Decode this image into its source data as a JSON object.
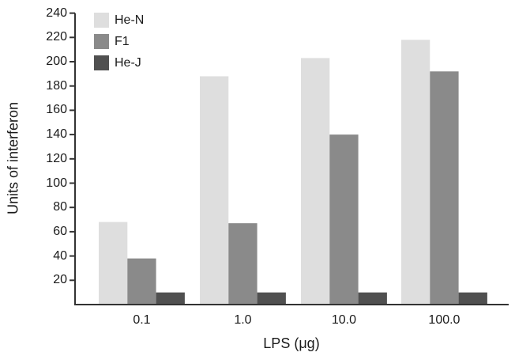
{
  "chart_data": {
    "type": "bar",
    "title": "",
    "xlabel": "LPS (μg)",
    "ylabel": "Units of interferon",
    "categories": [
      "0.1",
      "1.0",
      "10.0",
      "100.0"
    ],
    "series": [
      {
        "name": "He-N",
        "color": "#dedede",
        "values": [
          68,
          188,
          203,
          218
        ]
      },
      {
        "name": "F1",
        "color": "#8a8a8a",
        "values": [
          38,
          67,
          140,
          192
        ]
      },
      {
        "name": "He-J",
        "color": "#505050",
        "values": [
          10,
          10,
          10,
          10
        ]
      }
    ],
    "ylim": [
      0,
      240
    ],
    "yticks": [
      20,
      40,
      60,
      80,
      100,
      120,
      140,
      160,
      180,
      200,
      220,
      240
    ],
    "grid": false,
    "legend_position": "upper-left"
  },
  "labels": {
    "xlabel": "LPS (μg)",
    "ylabel": "Units of interferon"
  }
}
